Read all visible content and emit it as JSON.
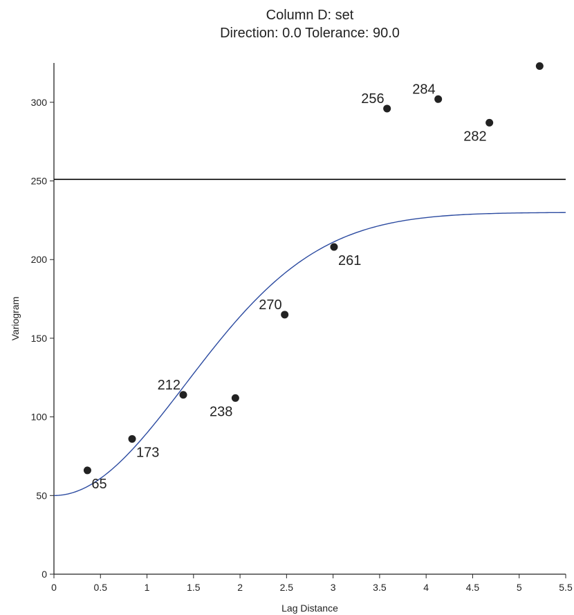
{
  "chart_data": {
    "type": "scatter",
    "title": "Column D:  set",
    "subtitle": "Direction: 0.0    Tolerance: 90.0",
    "xlabel": "Lag Distance",
    "ylabel": "Variogram",
    "xlim": [
      0,
      5.5
    ],
    "ylim": [
      0,
      325
    ],
    "xticks": [
      0,
      0.5,
      1,
      1.5,
      2,
      2.5,
      3,
      3.5,
      4,
      4.5,
      5,
      5.5
    ],
    "xtick_labels": [
      "0",
      "0.5",
      "1",
      "1.5",
      "2",
      "2.5",
      "3",
      "3.5",
      "4",
      "4.5",
      "5",
      "5.5"
    ],
    "yticks": [
      0,
      50,
      100,
      150,
      200,
      250,
      300
    ],
    "ytick_labels": [
      "0",
      "50",
      "100",
      "150",
      "200",
      "250",
      "300"
    ],
    "points": [
      {
        "x": 0.36,
        "y": 66,
        "label": "65",
        "label_pos": "below-right"
      },
      {
        "x": 0.84,
        "y": 86,
        "label": "173",
        "label_pos": "below-right"
      },
      {
        "x": 1.39,
        "y": 114,
        "label": "212",
        "label_pos": "above-left"
      },
      {
        "x": 1.95,
        "y": 112,
        "label": "238",
        "label_pos": "below-left"
      },
      {
        "x": 2.48,
        "y": 165,
        "label": "270",
        "label_pos": "above-left"
      },
      {
        "x": 3.01,
        "y": 208,
        "label": "261",
        "label_pos": "below-right"
      },
      {
        "x": 3.58,
        "y": 296,
        "label": "256",
        "label_pos": "above-left"
      },
      {
        "x": 4.13,
        "y": 302,
        "label": "284",
        "label_pos": "above-left"
      },
      {
        "x": 4.68,
        "y": 287,
        "label": "282",
        "label_pos": "below-left"
      },
      {
        "x": 5.22,
        "y": 323,
        "label": "",
        "label_pos": "none"
      }
    ],
    "sill_line": {
      "y": 251
    },
    "model": {
      "type": "gaussian",
      "nugget": 50,
      "sill": 230,
      "range": 2.0
    },
    "colors": {
      "points": "#222222",
      "model": "#2b4aa0",
      "sill": "#000000"
    }
  }
}
